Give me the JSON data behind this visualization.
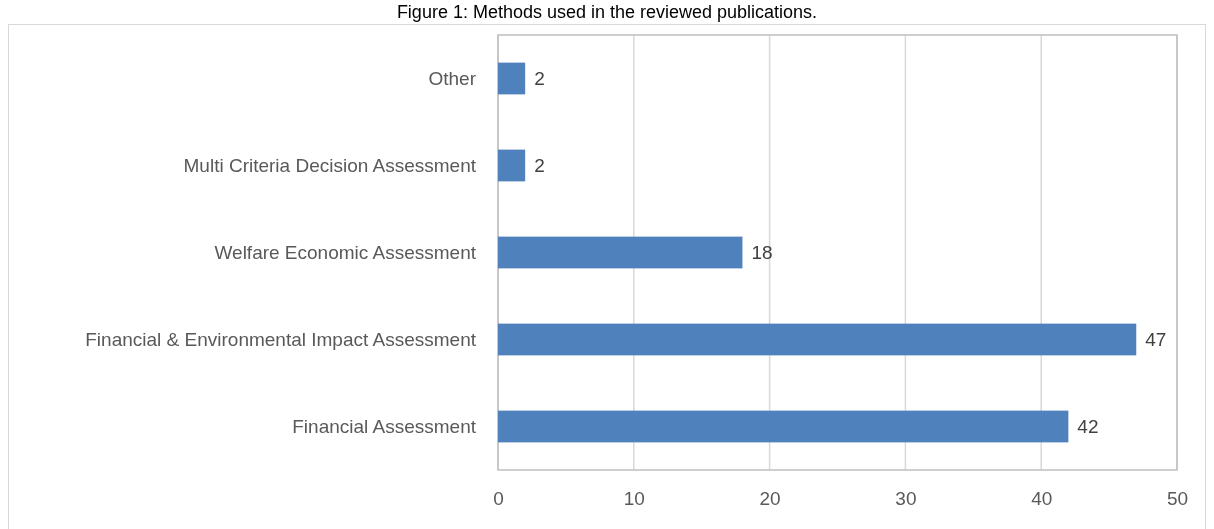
{
  "chart_data": {
    "type": "bar",
    "orientation": "horizontal",
    "title": "Figure 1: Methods used in the reviewed publications.",
    "categories": [
      "Other",
      "Multi Criteria Decision Assessment",
      "Welfare Economic Assessment",
      "Financial & Environmental Impact Assessment",
      "Financial Assessment"
    ],
    "values": [
      2,
      2,
      18,
      47,
      42
    ],
    "color": "#4f81bd",
    "xlim": [
      0,
      50
    ],
    "xticks": [
      0,
      10,
      20,
      30,
      40,
      50
    ],
    "grid": "x",
    "data_labels": true
  }
}
